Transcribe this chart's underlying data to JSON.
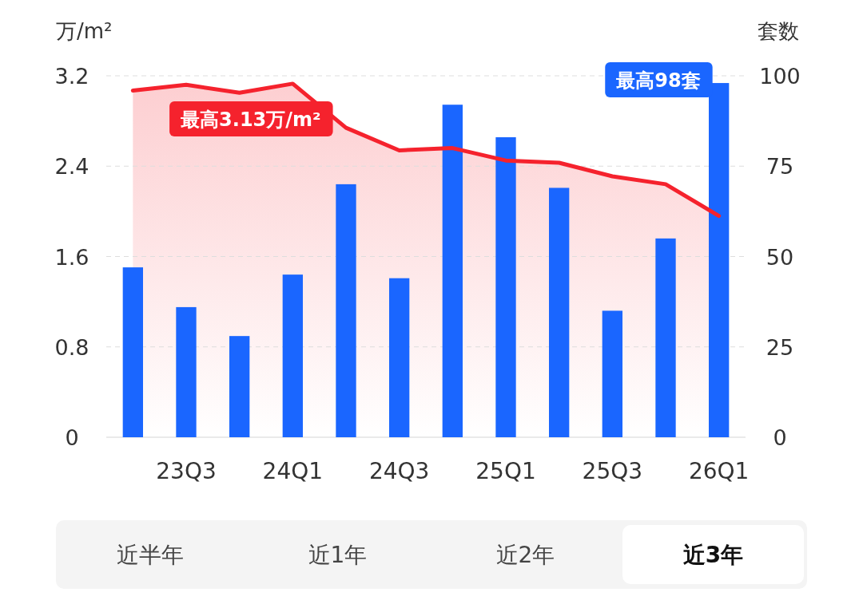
{
  "chart_data": {
    "type": "bar",
    "xlabel": null,
    "ylabel": "万/m²",
    "y2label": "套数",
    "categories": [
      null,
      "23Q3",
      null,
      "24Q1",
      null,
      "24Q3",
      null,
      "25Q1",
      null,
      "25Q3",
      null,
      "26Q1"
    ],
    "series": [
      {
        "axis": "y2",
        "color": "#1a66ff",
        "values": [
          47,
          36,
          28,
          45,
          70,
          44,
          92,
          83,
          69,
          35,
          55,
          98
        ]
      },
      {
        "type": "line",
        "color": "#f5222d",
        "values": [
          3.07,
          3.12,
          3.05,
          3.13,
          2.74,
          2.54,
          2.56,
          2.45,
          2.43,
          2.31,
          2.24,
          1.96
        ]
      }
    ],
    "ylim": [
      0,
      3.2
    ],
    "yticks": [
      0,
      0.8,
      1.6,
      2.4,
      3.2
    ],
    "y2lim": [
      0,
      100
    ],
    "y2ticks": [
      0,
      25,
      50,
      75,
      100
    ],
    "grid": "y",
    "annotations": [
      {
        "text": "最高3.13万/m²",
        "x": "24Q1",
        "y": 3.13
      },
      "最高98套",
      "近半年",
      "近1年",
      "近2年",
      "近3年"
    ]
  }
}
